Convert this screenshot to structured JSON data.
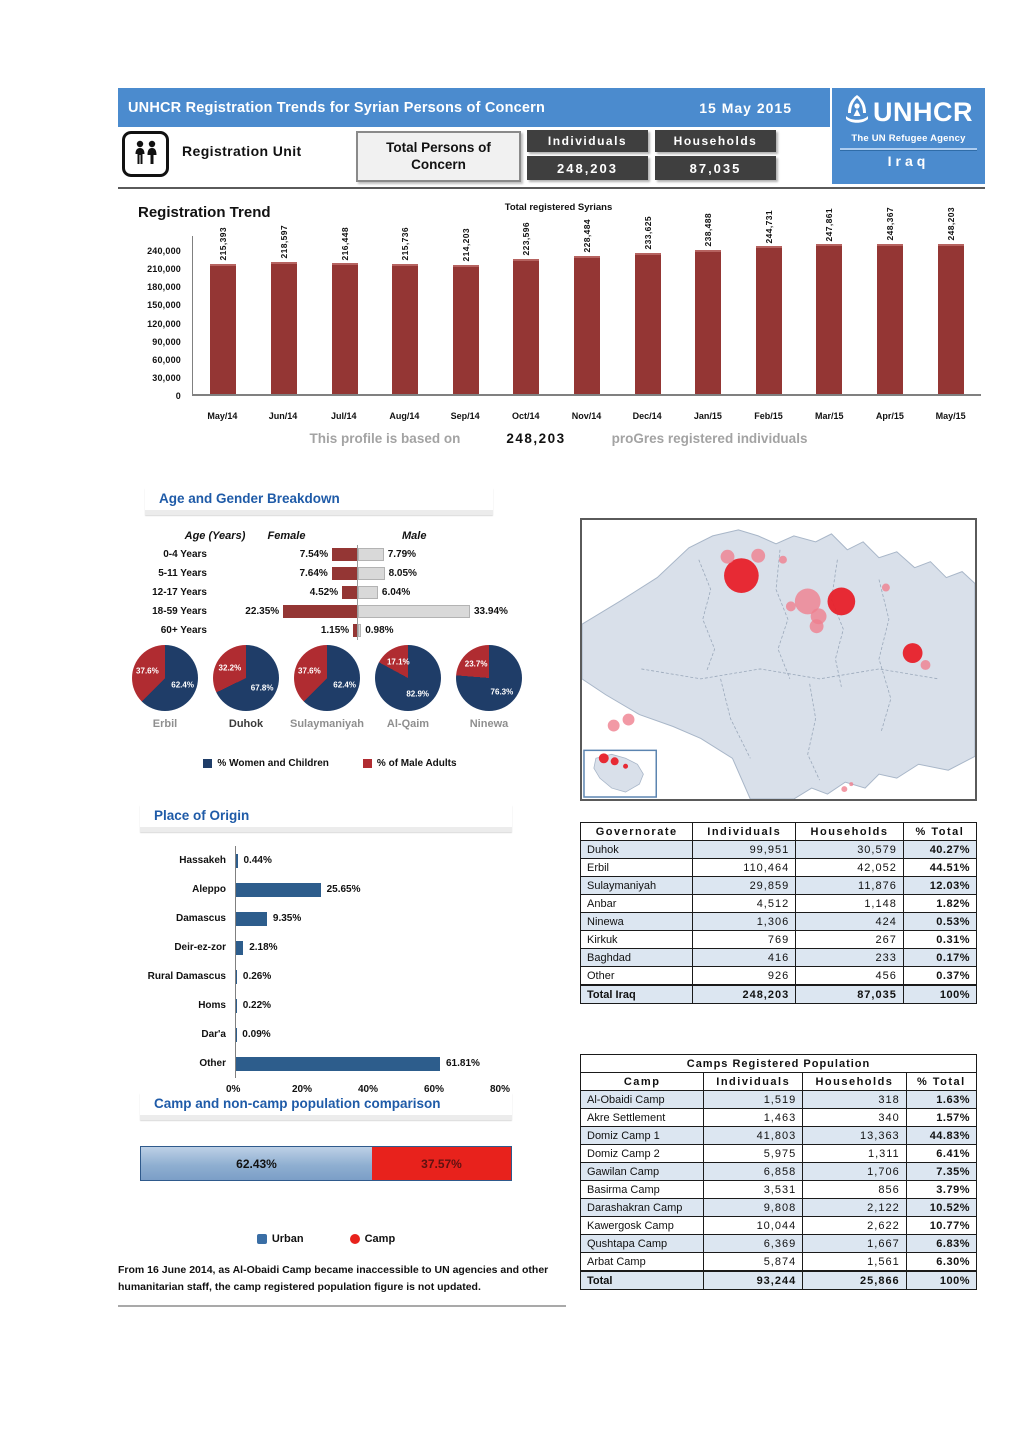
{
  "header": {
    "title": "UNHCR Registration Trends for Syrian Persons of Concern",
    "date": "15 May 2015",
    "unit_label": "Registration Unit",
    "total_label": "Total Persons of Concern",
    "individuals_label": "Individuals",
    "households_label": "Households",
    "individuals_value": "248,203",
    "households_value": "87,035",
    "logo": {
      "brand": "UNHCR",
      "tagline": "The UN Refugee Agency",
      "country": "Iraq"
    }
  },
  "profile_line": {
    "prefix": "This profile is based on",
    "value": "248,203",
    "suffix": "proGres registered individuals"
  },
  "chart_data": [
    {
      "type": "bar",
      "title": "Registration Trend",
      "legend": "Total registered Syrians",
      "categories": [
        "May/14",
        "Jun/14",
        "Jul/14",
        "Aug/14",
        "Sep/14",
        "Oct/14",
        "Nov/14",
        "Dec/14",
        "Jan/15",
        "Feb/15",
        "Mar/15",
        "Apr/15",
        "May/15"
      ],
      "values": [
        215393,
        218597,
        216448,
        215736,
        214203,
        223596,
        228484,
        233625,
        238488,
        244731,
        247861,
        248367,
        248203
      ],
      "value_labels": [
        "215,393",
        "218,597",
        "216,448",
        "215,736",
        "214,203",
        "223,596",
        "228,484",
        "233,625",
        "238,488",
        "244,731",
        "247,861",
        "248,367",
        "248,203"
      ],
      "y_ticks": [
        0,
        30000,
        60000,
        90000,
        120000,
        150000,
        180000,
        210000,
        240000
      ],
      "y_tick_labels": [
        "0",
        "30,000",
        "60,000",
        "90,000",
        "120,000",
        "150,000",
        "180,000",
        "210,000",
        "240,000"
      ],
      "bar_color": "#943634"
    },
    {
      "type": "tornado_bar",
      "title": "Age and Gender Breakdown",
      "col_headers": {
        "age": "Age (Years)",
        "female": "Female",
        "male": "Male"
      },
      "rows": [
        {
          "age": "0-4 Years",
          "female": 7.54,
          "male": 7.79,
          "female_label": "7.54%",
          "male_label": "7.79%"
        },
        {
          "age": "5-11 Years",
          "female": 7.64,
          "male": 8.05,
          "female_label": "7.64%",
          "male_label": "8.05%"
        },
        {
          "age": "12-17 Years",
          "female": 4.52,
          "male": 6.04,
          "female_label": "4.52%",
          "male_label": "6.04%"
        },
        {
          "age": "18-59 Years",
          "female": 22.35,
          "male": 33.94,
          "female_label": "22.35%",
          "male_label": "33.94%"
        },
        {
          "age": "60+ Years",
          "female": 1.15,
          "male": 0.98,
          "female_label": "1.15%",
          "male_label": "0.98%"
        }
      ],
      "female_color": "#943634",
      "male_color": "#d9d9d9"
    },
    {
      "type": "pie",
      "legend": [
        "% Women and Children",
        "% of Male Adults"
      ],
      "colors": {
        "women_children": "#1f3d68",
        "male_adults": "#b02c31"
      },
      "items": [
        {
          "name": "Erbil",
          "women_children": 62.4,
          "male_adults": 37.6,
          "wc_label": "62.4%",
          "ma_label": "37.6%"
        },
        {
          "name": "Duhok",
          "women_children": 67.8,
          "male_adults": 32.2,
          "wc_label": "67.8%",
          "ma_label": "32.2%"
        },
        {
          "name": "Sulaymaniyah",
          "women_children": 62.4,
          "male_adults": 37.6,
          "wc_label": "62.4%",
          "ma_label": "37.6%"
        },
        {
          "name": "Al-Qaim",
          "women_children": 82.9,
          "male_adults": 17.1,
          "wc_label": "82.9%",
          "ma_label": "17.1%"
        },
        {
          "name": "Ninewa",
          "women_children": 76.3,
          "male_adults": 23.7,
          "wc_label": "76.3%",
          "ma_label": "23.7%"
        }
      ]
    },
    {
      "type": "bar",
      "orientation": "horizontal",
      "title": "Place of Origin",
      "categories": [
        "Hassakeh",
        "Aleppo",
        "Damascus",
        "Deir-ez-zor",
        "Rural Damascus",
        "Homs",
        "Dar'a",
        "Other"
      ],
      "values": [
        0.44,
        25.65,
        9.35,
        2.18,
        0.26,
        0.22,
        0.09,
        61.81
      ],
      "value_labels": [
        "0.44%",
        "25.65%",
        "9.35%",
        "2.18%",
        "0.26%",
        "0.22%",
        "0.09%",
        "61.81%"
      ],
      "x_tick_labels": [
        "0%",
        "20%",
        "40%",
        "60%",
        "80%"
      ],
      "bar_color": "#2d5d8c"
    },
    {
      "type": "stacked_bar",
      "title": "Camp and non-camp population comparison",
      "segments": [
        {
          "label": "Urban",
          "value": 62.43,
          "value_label": "62.43%",
          "color": "#8fafd1"
        },
        {
          "label": "Camp",
          "value": 37.57,
          "value_label": "37.57%",
          "color": "#e8221c"
        }
      ]
    }
  ],
  "governorate_table": {
    "headers": [
      "Governorate",
      "Individuals",
      "Households",
      "% Total"
    ],
    "rows": [
      [
        "Duhok",
        "99,951",
        "30,579",
        "40.27%"
      ],
      [
        "Erbil",
        "110,464",
        "42,052",
        "44.51%"
      ],
      [
        "Sulaymaniyah",
        "29,859",
        "11,876",
        "12.03%"
      ],
      [
        "Anbar",
        "4,512",
        "1,148",
        "1.82%"
      ],
      [
        "Ninewa",
        "1,306",
        "424",
        "0.53%"
      ],
      [
        "Kirkuk",
        "769",
        "267",
        "0.31%"
      ],
      [
        "Baghdad",
        "416",
        "233",
        "0.17%"
      ],
      [
        "Other",
        "926",
        "456",
        "0.37%"
      ]
    ],
    "total": [
      "Total Iraq",
      "248,203",
      "87,035",
      "100%"
    ]
  },
  "camps_table": {
    "title": "Camps Registered Population",
    "headers": [
      "Camp",
      "Individuals",
      "Households",
      "% Total"
    ],
    "rows": [
      [
        "Al-Obaidi Camp",
        "1,519",
        "318",
        "1.63%"
      ],
      [
        "Akre Settlement",
        "1,463",
        "340",
        "1.57%"
      ],
      [
        "Domiz Camp 1",
        "41,803",
        "13,363",
        "44.83%"
      ],
      [
        "Domiz Camp 2",
        "5,975",
        "1,311",
        "6.41%"
      ],
      [
        "Gawilan Camp",
        "6,858",
        "1,706",
        "7.35%"
      ],
      [
        "Basirma Camp",
        "3,531",
        "856",
        "3.79%"
      ],
      [
        "Darashakran Camp",
        "9,808",
        "2,122",
        "10.52%"
      ],
      [
        "Kawergosk Camp",
        "10,044",
        "2,622",
        "10.77%"
      ],
      [
        "Qushtapa Camp",
        "6,369",
        "1,667",
        "6.83%"
      ],
      [
        "Arbat Camp",
        "5,874",
        "1,561",
        "6.30%"
      ]
    ],
    "total": [
      "Total",
      "93,244",
      "25,866",
      "100%"
    ]
  },
  "footnote": "From 16 June 2014, as Al-Obaidi Camp became inaccessible to UN agencies and other humanitarian staff, the camp registered population figure is not updated.",
  "map": {
    "colors": {
      "red": "#e8202a",
      "pink": "#ef7f8f"
    },
    "bubbles": [
      {
        "x": 161,
        "y": 56,
        "r": 17.5,
        "c": "red"
      },
      {
        "x": 147,
        "y": 37,
        "r": 7,
        "c": "pink"
      },
      {
        "x": 178,
        "y": 36,
        "r": 7,
        "c": "pink"
      },
      {
        "x": 203,
        "y": 40,
        "r": 4,
        "c": "pink"
      },
      {
        "x": 228,
        "y": 82,
        "r": 13,
        "c": "pink"
      },
      {
        "x": 211,
        "y": 87,
        "r": 5,
        "c": "pink"
      },
      {
        "x": 239,
        "y": 97,
        "r": 8,
        "c": "pink"
      },
      {
        "x": 237,
        "y": 107,
        "r": 7,
        "c": "pink"
      },
      {
        "x": 262,
        "y": 82,
        "r": 14,
        "c": "red"
      },
      {
        "x": 307,
        "y": 68,
        "r": 4,
        "c": "pink"
      },
      {
        "x": 334,
        "y": 134,
        "r": 10,
        "c": "red"
      },
      {
        "x": 347,
        "y": 146,
        "r": 5,
        "c": "pink"
      },
      {
        "x": 32,
        "y": 207,
        "r": 6,
        "c": "pink"
      },
      {
        "x": 47,
        "y": 201,
        "r": 6,
        "c": "pink"
      },
      {
        "x": 265,
        "y": 271,
        "r": 3,
        "c": "pink"
      },
      {
        "x": 272,
        "y": 266,
        "r": 2,
        "c": "pink"
      },
      {
        "x": 22,
        "y": 240,
        "r": 5,
        "c": "red"
      },
      {
        "x": 33,
        "y": 243,
        "r": 4,
        "c": "red"
      },
      {
        "x": 44,
        "y": 248,
        "r": 2.5,
        "c": "red"
      }
    ]
  }
}
